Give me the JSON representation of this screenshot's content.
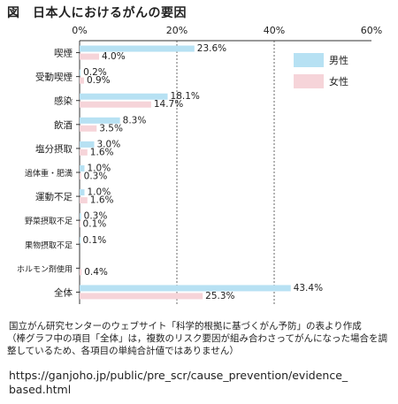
{
  "title": "図　日本人におけるがんの要因",
  "chart_data": {
    "type": "bar",
    "orientation": "horizontal",
    "x_ticks": [
      "0%",
      "20%",
      "40%",
      "60%"
    ],
    "xlim": [
      0,
      60
    ],
    "grid": "dashed vertical lines at 20% and 40%",
    "legend_placement": "top-right",
    "categories": [
      "喫煙",
      "受動喫煙",
      "感染",
      "飲酒",
      "塩分摂取",
      "過体重・肥満",
      "運動不足",
      "野菜摂取不足",
      "果物摂取不足",
      "ホルモン剤使用",
      "全体"
    ],
    "series": [
      {
        "name": "男性",
        "color": "#b7e1f3",
        "values": [
          23.6,
          0.2,
          18.1,
          8.3,
          3.0,
          1.0,
          1.0,
          0.3,
          0.1,
          null,
          43.4
        ],
        "labels": [
          "23.6%",
          "0.2%",
          "18.1%",
          "8.3%",
          "3.0%",
          "1.0%",
          "1.0%",
          "0.3%",
          "0.1%",
          "",
          "43.4%"
        ]
      },
      {
        "name": "女性",
        "color": "#f6d4d9",
        "values": [
          4.0,
          0.9,
          14.7,
          3.5,
          1.6,
          0.3,
          1.6,
          0.1,
          null,
          0.4,
          25.3
        ],
        "labels": [
          "4.0%",
          "0.9%",
          "14.7%",
          "3.5%",
          "1.6%",
          "0.3%",
          "1.6%",
          "0.1%",
          "",
          "0.4%",
          "25.3%"
        ]
      }
    ]
  },
  "notes": {
    "source": "国立がん研究センターのウェブサイト「科学的根拠に基づくがん予防」の表より作成",
    "disclaimer": "（棒グラフ中の項目「全体」は，複数のリスク要因が組み合わさってがんになった場合を調整しているため、各項目の単純合計値ではありません）",
    "url_line1": "https://ganjoho.jp/public/pre_scr/cause_prevention/evidence_",
    "url_line2": "based.html"
  }
}
